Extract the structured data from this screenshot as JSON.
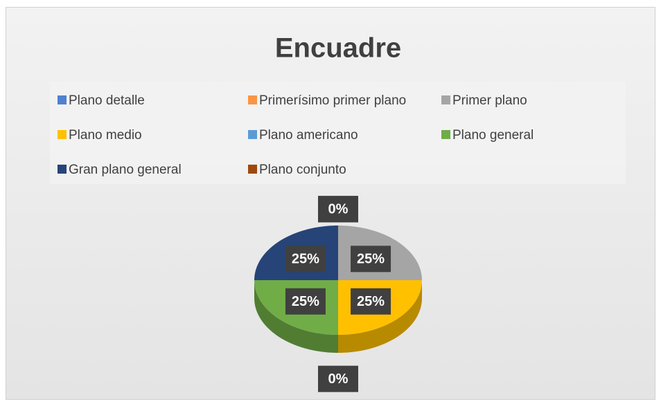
{
  "chart_data": {
    "type": "pie",
    "title": "Encuadre",
    "categories": [
      "Plano detalle",
      "Primerísimo primer plano",
      "Primer plano",
      "Plano medio",
      "Plano americano",
      "Plano general",
      "Gran plano general",
      "Plano conjunto"
    ],
    "values": [
      0,
      0,
      25,
      25,
      0,
      25,
      25,
      0
    ],
    "value_labels": [
      "0%",
      "0%",
      "25%",
      "25%",
      "0%",
      "25%",
      "25%",
      "0%"
    ],
    "colors": [
      "#4f81d0",
      "#f79646",
      "#a5a5a5",
      "#ffc000",
      "#5b9bd5",
      "#70ad47",
      "#264478",
      "#9e480e"
    ],
    "legend": "top"
  }
}
